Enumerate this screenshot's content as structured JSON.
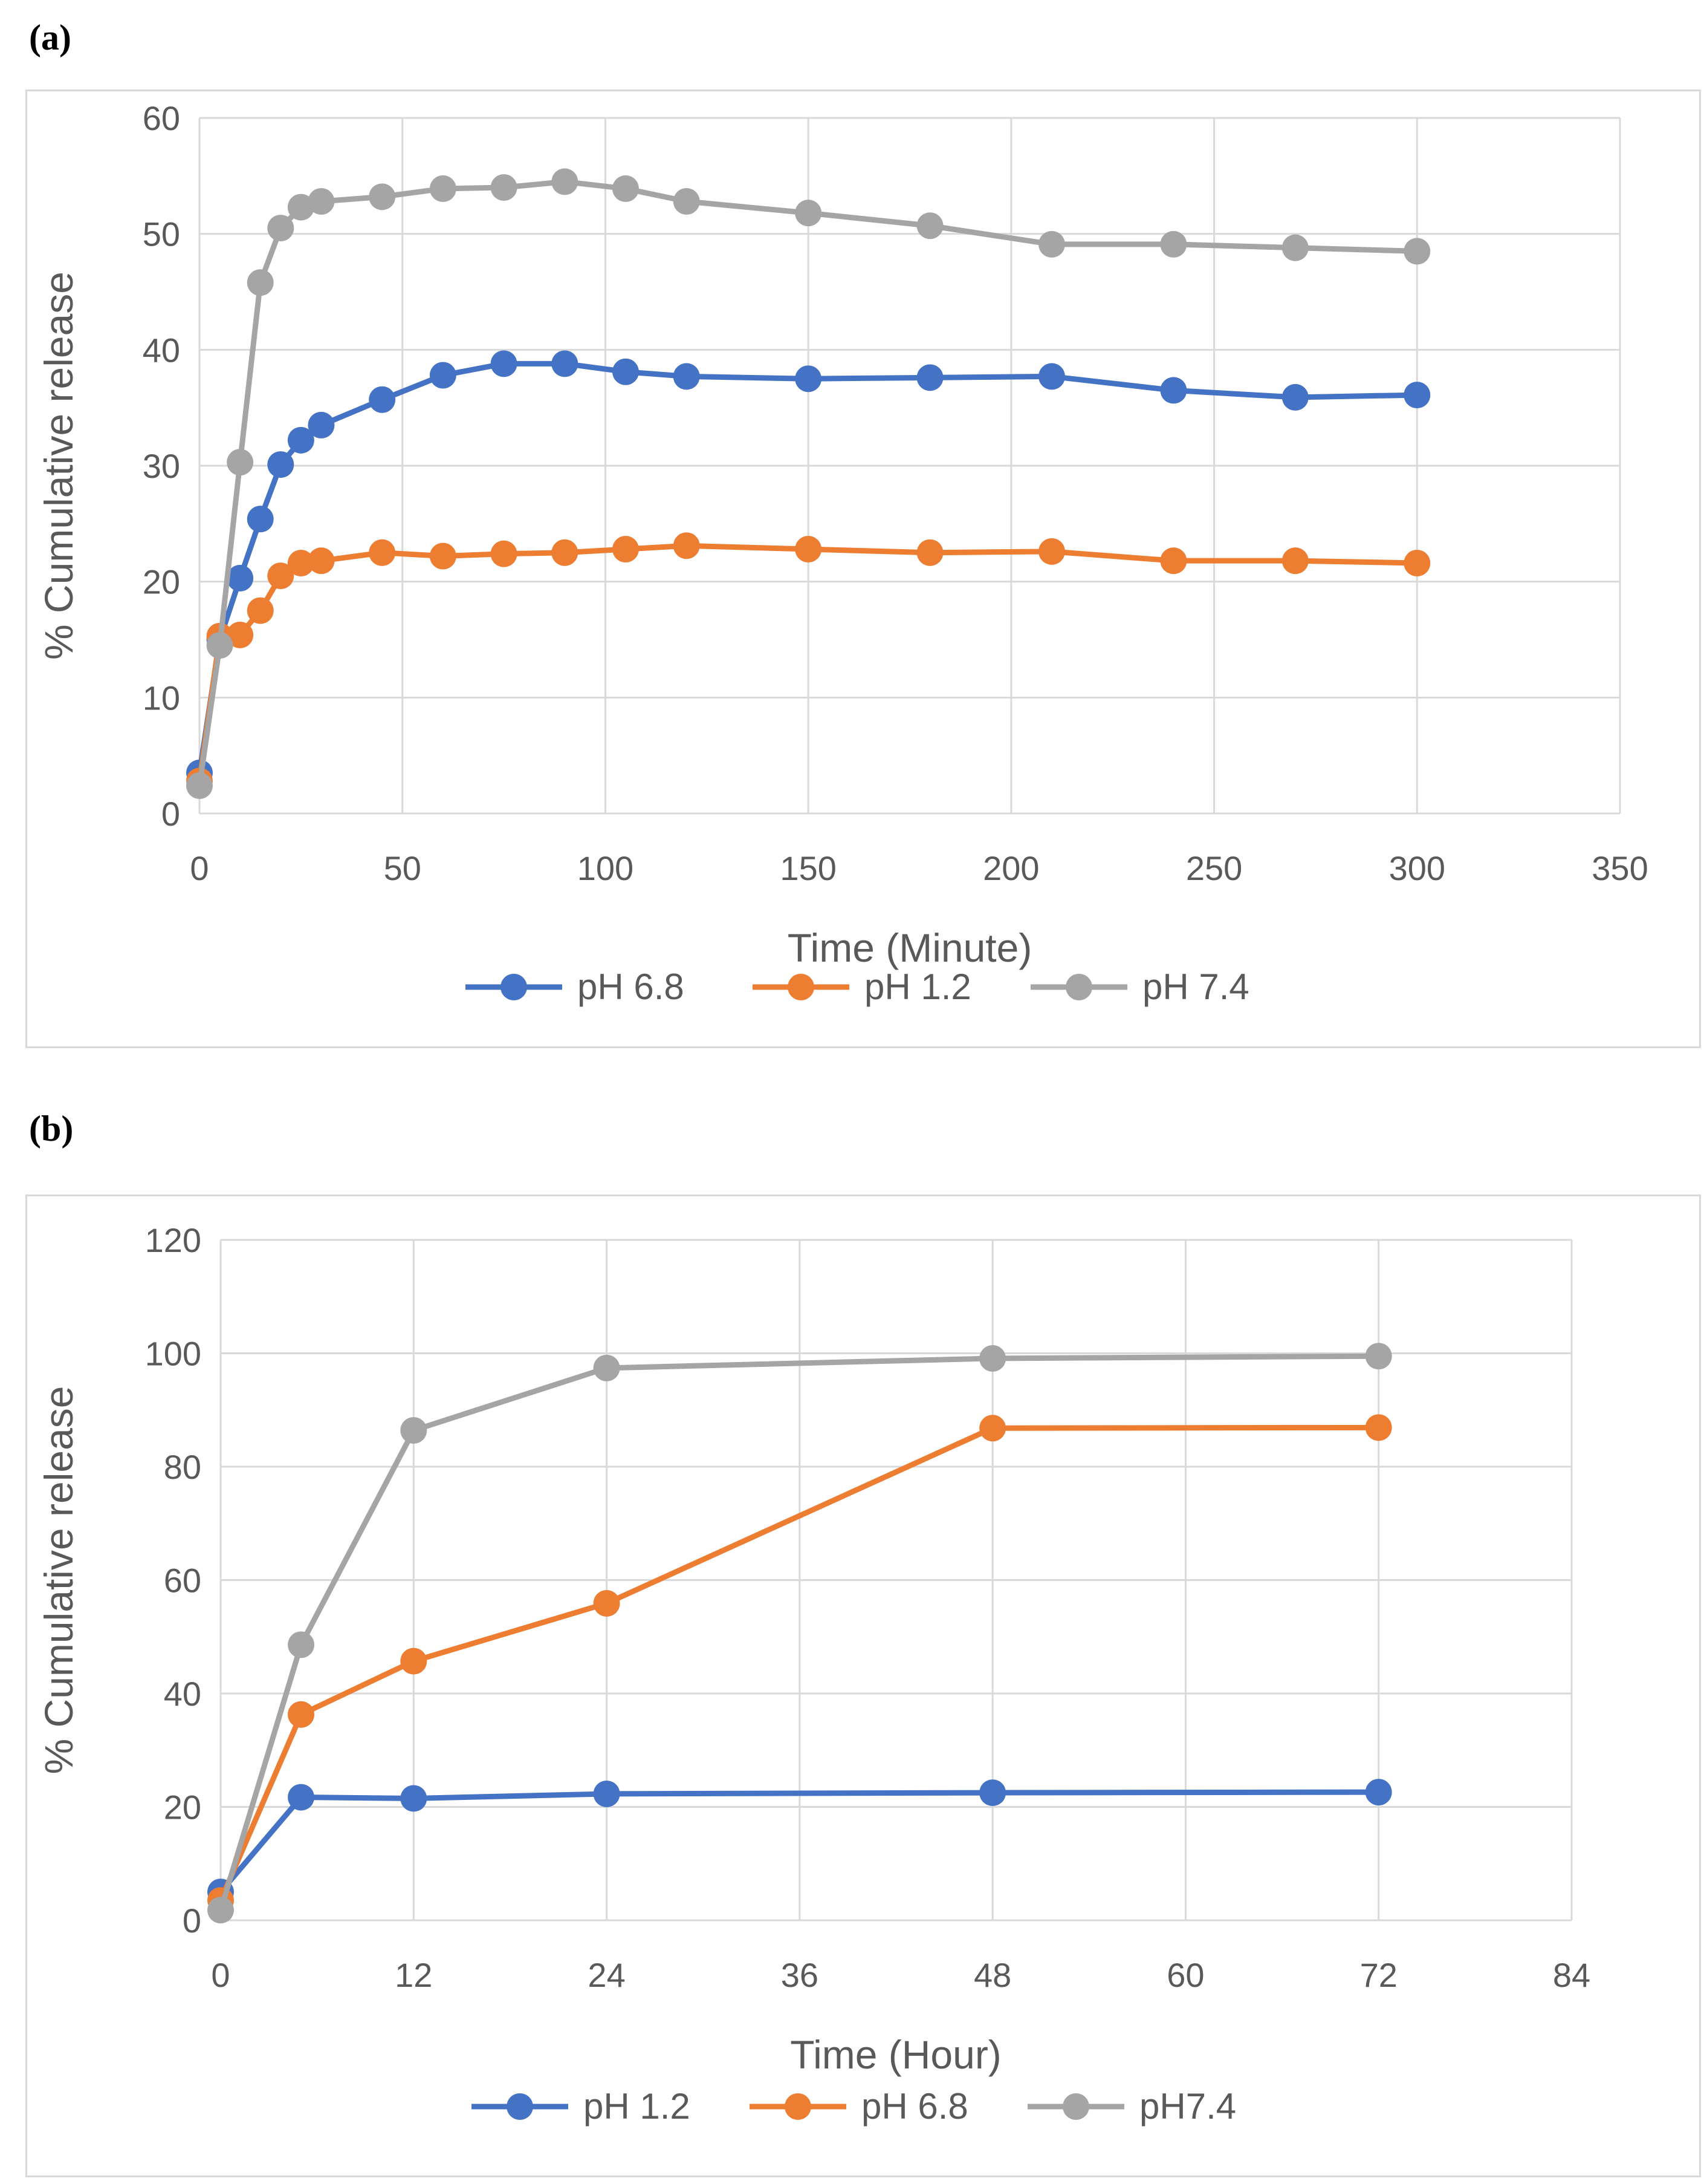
{
  "chart_data": [
    {
      "type": "line",
      "panel_label": "(a)",
      "xlabel": "Time (Minute)",
      "ylabel": "% Cumulative release",
      "xlim": [
        0,
        350
      ],
      "ylim": [
        0,
        60
      ],
      "xticks": [
        0,
        50,
        100,
        150,
        200,
        250,
        300,
        350
      ],
      "yticks": [
        0,
        10,
        20,
        30,
        40,
        50,
        60
      ],
      "grid": true,
      "legend": "bottom",
      "series": [
        {
          "name": "pH 6.8",
          "color": "#4472c4",
          "x": [
            0,
            5,
            10,
            15,
            20,
            25,
            30,
            45,
            60,
            75,
            90,
            105,
            120,
            150,
            180,
            210,
            240,
            270,
            300
          ],
          "y": [
            3.5,
            15,
            20.3,
            25.4,
            30.1,
            32.2,
            33.5,
            35.7,
            37.8,
            38.8,
            38.8,
            38.1,
            37.7,
            37.5,
            37.6,
            37.7,
            36.5,
            35.9,
            36.1
          ]
        },
        {
          "name": "pH 1.2",
          "color": "#ed7d31",
          "x": [
            0,
            5,
            10,
            15,
            20,
            25,
            30,
            45,
            60,
            75,
            90,
            105,
            120,
            150,
            180,
            210,
            240,
            270,
            300
          ],
          "y": [
            2.8,
            15.3,
            15.4,
            17.5,
            20.5,
            21.6,
            21.8,
            22.5,
            22.2,
            22.4,
            22.5,
            22.8,
            23.1,
            22.8,
            22.5,
            22.6,
            21.8,
            21.8,
            21.6
          ]
        },
        {
          "name": "pH 7.4",
          "color": "#a5a5a5",
          "x": [
            0,
            5,
            10,
            15,
            20,
            25,
            30,
            45,
            60,
            75,
            90,
            105,
            120,
            150,
            180,
            210,
            240,
            270,
            300
          ],
          "y": [
            2.4,
            14.5,
            30.3,
            45.8,
            50.5,
            52.3,
            52.8,
            53.2,
            53.9,
            54.0,
            54.5,
            53.9,
            52.8,
            51.8,
            50.7,
            49.1,
            49.1,
            48.8,
            48.5
          ]
        }
      ]
    },
    {
      "type": "line",
      "panel_label": "(b)",
      "xlabel": "Time (Hour)",
      "ylabel": "% Cumulative release",
      "xlim": [
        0,
        84
      ],
      "ylim": [
        0,
        120
      ],
      "xticks": [
        0,
        12,
        24,
        36,
        48,
        60,
        72,
        84
      ],
      "yticks": [
        0,
        20,
        40,
        60,
        80,
        100,
        120
      ],
      "grid": true,
      "legend": "bottom",
      "series": [
        {
          "name": "pH 1.2",
          "color": "#4472c4",
          "x": [
            0,
            5,
            12,
            24,
            48,
            72
          ],
          "y": [
            5,
            21.7,
            21.5,
            22.3,
            22.5,
            22.6
          ]
        },
        {
          "name": "pH 6.8",
          "color": "#ed7d31",
          "x": [
            0,
            5,
            12,
            24,
            48,
            72
          ],
          "y": [
            3.5,
            36.3,
            45.7,
            55.9,
            86.8,
            86.9
          ]
        },
        {
          "name": "pH7.4",
          "color": "#a5a5a5",
          "x": [
            0,
            5,
            12,
            24,
            48,
            72
          ],
          "y": [
            1.8,
            48.6,
            86.4,
            97.4,
            99.1,
            99.5
          ]
        }
      ]
    }
  ]
}
